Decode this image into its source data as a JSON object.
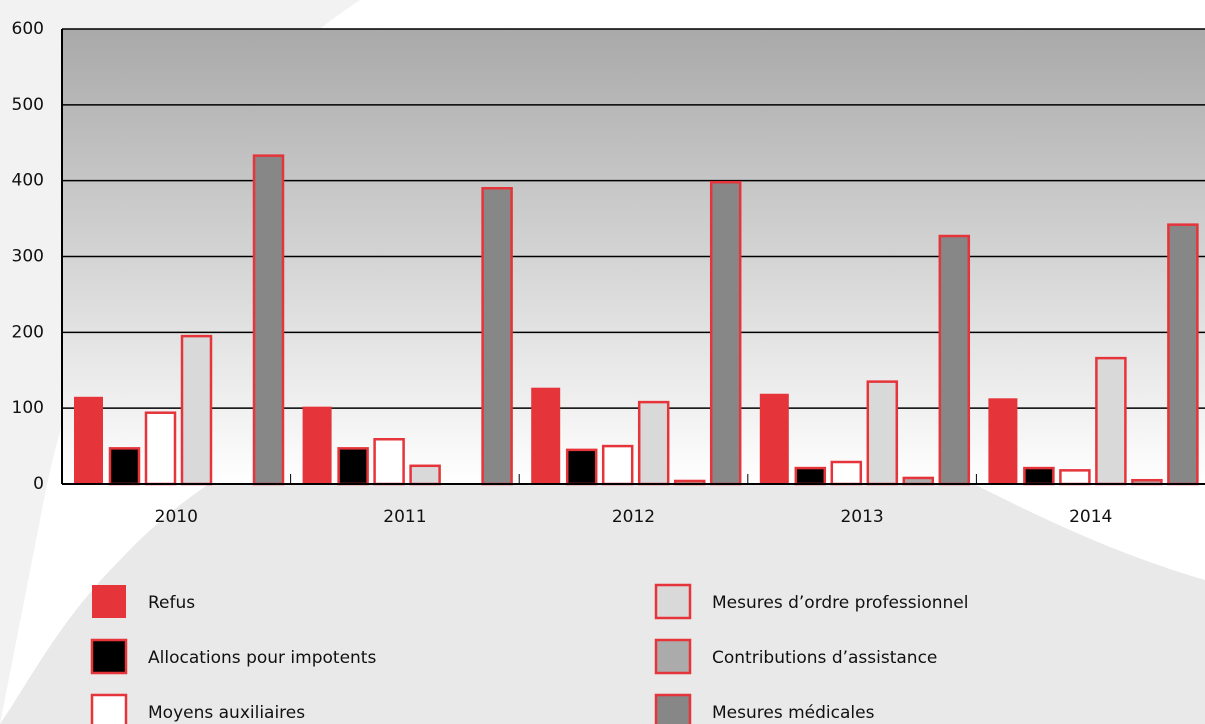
{
  "chart_data": {
    "type": "bar",
    "categories": [
      "2010",
      "2011",
      "2012",
      "2013",
      "2014"
    ],
    "series": [
      {
        "name": "Refus",
        "color": "#e5343a",
        "values": [
          115,
          102,
          127,
          119,
          113
        ]
      },
      {
        "name": "Allocations pour impotents",
        "color": "#000000",
        "values": [
          47,
          47,
          45,
          21,
          21
        ]
      },
      {
        "name": "Moyens auxiliaires",
        "color": "#ffffff",
        "values": [
          94,
          59,
          50,
          29,
          18
        ]
      },
      {
        "name": "Mesures d’ordre professionnel",
        "color": "#d9d9d9",
        "values": [
          195,
          24,
          108,
          135,
          166
        ]
      },
      {
        "name": "Contributions d’assistance",
        "color": "#ababab",
        "values": [
          0,
          0,
          4,
          8,
          5
        ]
      },
      {
        "name": "Mesures médicales",
        "color": "#878787",
        "values": [
          433,
          390,
          398,
          327,
          342
        ]
      }
    ],
    "edgecolor": "#e5343a",
    "ylim": [
      0,
      600
    ],
    "yticks": [
      0,
      100,
      200,
      300,
      400,
      500,
      600
    ],
    "grid": true
  }
}
